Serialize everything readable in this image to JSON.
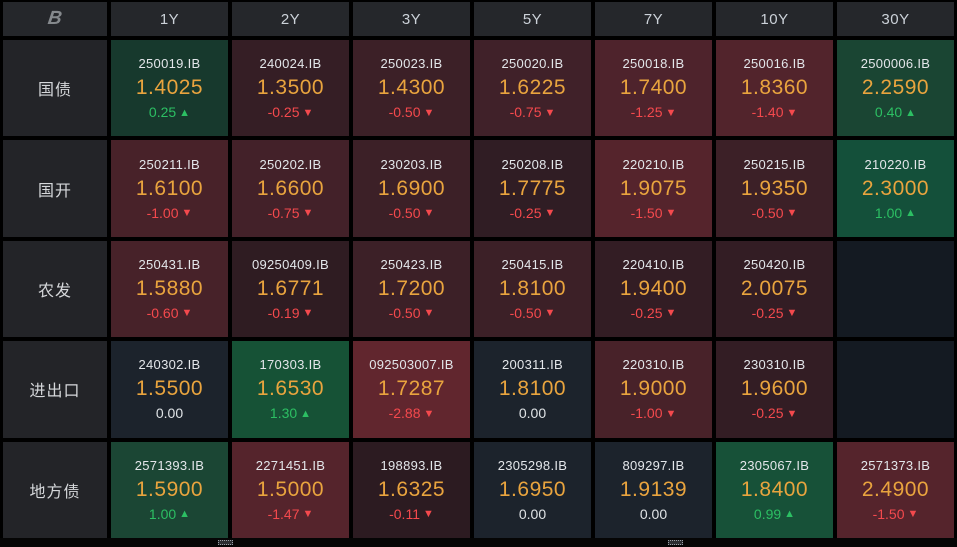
{
  "header": {
    "logo": "B",
    "columns": [
      "1Y",
      "2Y",
      "3Y",
      "5Y",
      "7Y",
      "10Y",
      "30Y"
    ]
  },
  "colors": {
    "up": "#2cbf63",
    "down": "#f4494d",
    "flat": "#dfe3e6",
    "yield": "#e9a43e",
    "code": "#e3e6ea"
  },
  "icons": {
    "up": "▲",
    "down": "▼",
    "flat": ""
  },
  "rows": [
    {
      "label": "国债",
      "cells": [
        {
          "code": "250019.IB",
          "yield": "1.4025",
          "change": "0.25",
          "dir": "up",
          "bg": "#17392d"
        },
        {
          "code": "240024.IB",
          "yield": "1.3500",
          "change": "-0.25",
          "dir": "down",
          "bg": "#351e25"
        },
        {
          "code": "250023.IB",
          "yield": "1.4300",
          "change": "-0.50",
          "dir": "down",
          "bg": "#3c2027"
        },
        {
          "code": "250020.IB",
          "yield": "1.6225",
          "change": "-0.75",
          "dir": "down",
          "bg": "#402129"
        },
        {
          "code": "250018.IB",
          "yield": "1.7400",
          "change": "-1.25",
          "dir": "down",
          "bg": "#4e232c"
        },
        {
          "code": "250016.IB",
          "yield": "1.8360",
          "change": "-1.40",
          "dir": "down",
          "bg": "#52242c"
        },
        {
          "code": "2500006.IB",
          "yield": "2.2590",
          "change": "0.40",
          "dir": "up",
          "bg": "#1a4533"
        }
      ]
    },
    {
      "label": "国开",
      "cells": [
        {
          "code": "250211.IB",
          "yield": "1.6100",
          "change": "-1.00",
          "dir": "down",
          "bg": "#482229"
        },
        {
          "code": "250202.IB",
          "yield": "1.6600",
          "change": "-0.75",
          "dir": "down",
          "bg": "#432129"
        },
        {
          "code": "230203.IB",
          "yield": "1.6900",
          "change": "-0.50",
          "dir": "down",
          "bg": "#3c2027"
        },
        {
          "code": "250208.IB",
          "yield": "1.7775",
          "change": "-0.25",
          "dir": "down",
          "bg": "#301d24"
        },
        {
          "code": "220210.IB",
          "yield": "1.9075",
          "change": "-1.50",
          "dir": "down",
          "bg": "#55242c"
        },
        {
          "code": "250215.IB",
          "yield": "1.9350",
          "change": "-0.50",
          "dir": "down",
          "bg": "#3c2027"
        },
        {
          "code": "210220.IB",
          "yield": "2.3000",
          "change": "1.00",
          "dir": "up",
          "bg": "#14503a"
        }
      ]
    },
    {
      "label": "农发",
      "cells": [
        {
          "code": "250431.IB",
          "yield": "1.5880",
          "change": "-0.60",
          "dir": "down",
          "bg": "#472229"
        },
        {
          "code": "09250409.IB",
          "yield": "1.6771",
          "change": "-0.19",
          "dir": "down",
          "bg": "#2f1c22"
        },
        {
          "code": "250423.IB",
          "yield": "1.7200",
          "change": "-0.50",
          "dir": "down",
          "bg": "#3c2027"
        },
        {
          "code": "250415.IB",
          "yield": "1.8100",
          "change": "-0.50",
          "dir": "down",
          "bg": "#3c2027"
        },
        {
          "code": "220410.IB",
          "yield": "1.9400",
          "change": "-0.25",
          "dir": "down",
          "bg": "#331d24"
        },
        {
          "code": "250420.IB",
          "yield": "2.0075",
          "change": "-0.25",
          "dir": "down",
          "bg": "#331d24"
        },
        {
          "empty": true,
          "bg": "#141a22"
        }
      ]
    },
    {
      "label": "进出口",
      "cells": [
        {
          "code": "240302.IB",
          "yield": "1.5500",
          "change": "0.00",
          "dir": "flat",
          "bg": "#1c232c"
        },
        {
          "code": "170303.IB",
          "yield": "1.6530",
          "change": "1.30",
          "dir": "up",
          "bg": "#165236"
        },
        {
          "code": "092503007.IB",
          "yield": "1.7287",
          "change": "-2.88",
          "dir": "down",
          "bg": "#61262e"
        },
        {
          "code": "200311.IB",
          "yield": "1.8100",
          "change": "0.00",
          "dir": "flat",
          "bg": "#1c232c"
        },
        {
          "code": "220310.IB",
          "yield": "1.9000",
          "change": "-1.00",
          "dir": "down",
          "bg": "#482229"
        },
        {
          "code": "230310.IB",
          "yield": "1.9600",
          "change": "-0.25",
          "dir": "down",
          "bg": "#331d24"
        },
        {
          "empty": true,
          "bg": "#141a22"
        }
      ]
    },
    {
      "label": "地方债",
      "cells": [
        {
          "code": "2571393.IB",
          "yield": "1.5900",
          "change": "1.00",
          "dir": "up",
          "bg": "#1b4634"
        },
        {
          "code": "2271451.IB",
          "yield": "1.5000",
          "change": "-1.47",
          "dir": "down",
          "bg": "#55242c"
        },
        {
          "code": "198893.IB",
          "yield": "1.6325",
          "change": "-0.11",
          "dir": "down",
          "bg": "#2c1b21"
        },
        {
          "code": "2305298.IB",
          "yield": "1.6950",
          "change": "0.00",
          "dir": "flat",
          "bg": "#1c232c"
        },
        {
          "code": "809297.IB",
          "yield": "1.9139",
          "change": "0.00",
          "dir": "flat",
          "bg": "#1c232c"
        },
        {
          "code": "2305067.IB",
          "yield": "1.8400",
          "change": "0.99",
          "dir": "up",
          "bg": "#175138"
        },
        {
          "code": "2571373.IB",
          "yield": "2.4900",
          "change": "-1.50",
          "dir": "down",
          "bg": "#55242c"
        }
      ]
    }
  ]
}
